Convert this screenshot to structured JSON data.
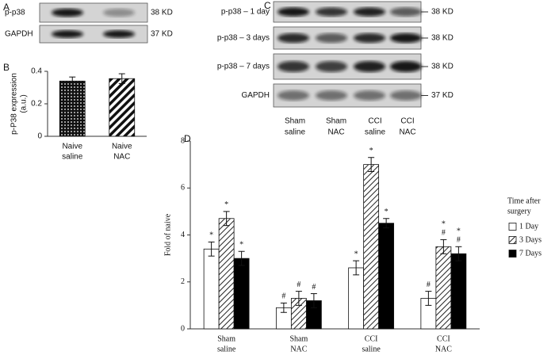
{
  "panel_labels": [
    "A",
    "B",
    "C",
    "D"
  ],
  "blot_a": {
    "rows": [
      {
        "label": "p-p38",
        "size": "38 KD"
      },
      {
        "label": "GAPDH",
        "size": "37 KD"
      }
    ]
  },
  "blot_c": {
    "rows": [
      {
        "label": "p-p38 – 1 day",
        "size": "38 KD"
      },
      {
        "label": "p-p38 – 3 days",
        "size": "38 KD"
      },
      {
        "label": "p-p38 – 7 days",
        "size": "38 KD"
      },
      {
        "label": "GAPDH",
        "size": "37 KD"
      }
    ],
    "lanes": [
      [
        "Sham",
        "saline"
      ],
      [
        "Sham",
        "NAC"
      ],
      [
        "CCI",
        "saline"
      ],
      [
        "CCI",
        "NAC"
      ]
    ]
  },
  "chart_data": [
    {
      "type": "bar",
      "ylabel": [
        "p-P38 expression",
        "(a.u.)"
      ],
      "categories": [
        [
          "Naive",
          "saline"
        ],
        [
          "Naive",
          "NAC"
        ]
      ],
      "values": [
        0.34,
        0.355
      ],
      "errors": [
        0.025,
        0.03
      ],
      "patterns": [
        "dots",
        "stripes"
      ],
      "ylim": [
        0,
        0.4
      ],
      "yticks": [
        0,
        0.2,
        0.4
      ]
    },
    {
      "type": "bar",
      "ylabel": "Fold of naive",
      "categories": [
        [
          "Sham",
          "saline"
        ],
        [
          "Sham",
          "NAC"
        ],
        [
          "CCI",
          "saline"
        ],
        [
          "CCI",
          "NAC"
        ]
      ],
      "series": [
        {
          "name": "1 Day",
          "color": "#ffffff",
          "values": [
            3.4,
            0.9,
            2.6,
            1.3
          ],
          "errors": [
            0.3,
            0.2,
            0.3,
            0.3
          ],
          "annotations": [
            [
              "*"
            ],
            [
              "#"
            ],
            [
              "*"
            ],
            [
              "#"
            ]
          ]
        },
        {
          "name": "3 Days",
          "color": "#ffffff",
          "pattern": "hatch",
          "values": [
            4.7,
            1.3,
            7.0,
            3.5
          ],
          "errors": [
            0.3,
            0.3,
            0.3,
            0.3
          ],
          "annotations": [
            [
              "*"
            ],
            [
              "#"
            ],
            [
              "*"
            ],
            [
              "*",
              "#"
            ]
          ]
        },
        {
          "name": "7 Days",
          "color": "#000000",
          "values": [
            3.0,
            1.2,
            4.5,
            3.2
          ],
          "errors": [
            0.3,
            0.3,
            0.2,
            0.3
          ],
          "annotations": [
            [
              "*"
            ],
            [
              "#"
            ],
            [
              "*"
            ],
            [
              "*",
              "#"
            ]
          ]
        }
      ],
      "ylim": [
        0,
        8
      ],
      "yticks": [
        0,
        2,
        4,
        6,
        8
      ],
      "legend_title": [
        "Time after",
        "surgery"
      ],
      "legend": "right"
    }
  ]
}
